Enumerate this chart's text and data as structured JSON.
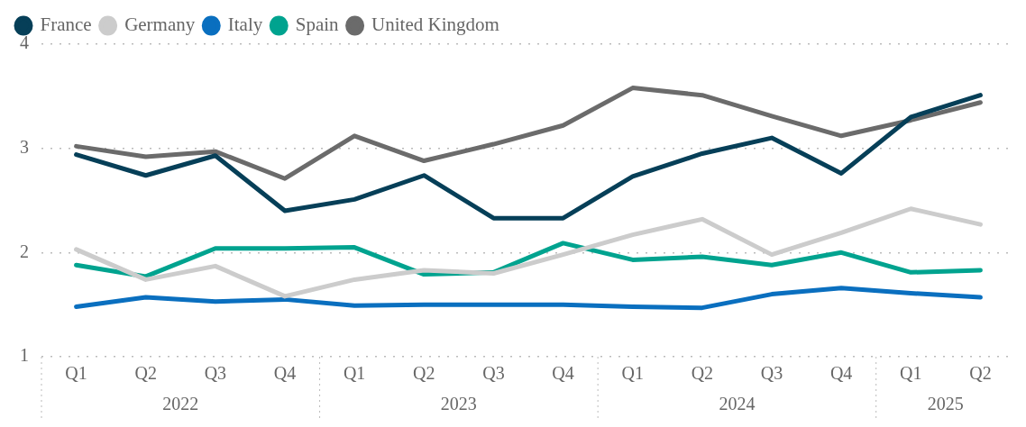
{
  "chart_data": {
    "type": "line",
    "categories": [
      "Q1",
      "Q2",
      "Q3",
      "Q4",
      "Q1",
      "Q2",
      "Q3",
      "Q4",
      "Q1",
      "Q2",
      "Q3",
      "Q4",
      "Q1",
      "Q2"
    ],
    "series": [
      {
        "name": "France",
        "color": "#063f58",
        "values": [
          2.94,
          2.74,
          2.93,
          2.4,
          2.51,
          2.74,
          2.33,
          2.33,
          2.73,
          2.95,
          3.1,
          2.76,
          3.3,
          3.51
        ]
      },
      {
        "name": "Germany",
        "color": "#cccccc",
        "values": [
          2.03,
          1.74,
          1.87,
          1.58,
          1.74,
          1.83,
          1.8,
          1.98,
          2.17,
          2.32,
          1.98,
          2.19,
          2.42,
          2.27
        ]
      },
      {
        "name": "Italy",
        "color": "#0a6fbf",
        "values": [
          1.48,
          1.57,
          1.53,
          1.55,
          1.49,
          1.5,
          1.5,
          1.5,
          1.48,
          1.47,
          1.6,
          1.66,
          1.61,
          1.57
        ]
      },
      {
        "name": "Spain",
        "color": "#00a38f",
        "values": [
          1.88,
          1.77,
          2.04,
          2.04,
          2.05,
          1.79,
          1.81,
          2.09,
          1.93,
          1.96,
          1.88,
          2.0,
          1.81,
          1.83
        ]
      },
      {
        "name": "United Kingdom",
        "color": "#6b6b6b",
        "values": [
          3.02,
          2.92,
          2.97,
          2.71,
          3.12,
          2.88,
          3.04,
          3.22,
          3.58,
          3.51,
          3.31,
          3.12,
          3.27,
          3.44
        ]
      }
    ],
    "annotations": [
      "2022",
      "2023",
      "2024",
      "2025"
    ],
    "ylim": [
      1,
      4
    ],
    "yticks": [
      1,
      2,
      3,
      4
    ],
    "grid": "y",
    "legend": "top left",
    "marker": "none",
    "line_style": "solid"
  }
}
